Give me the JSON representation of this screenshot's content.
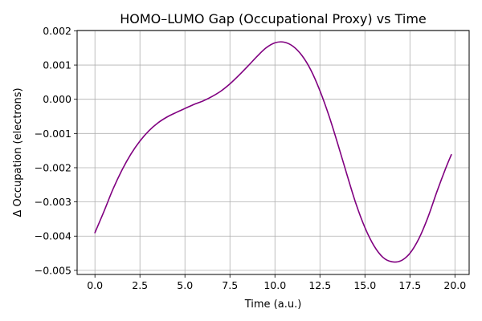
{
  "chart_data": {
    "type": "line",
    "title": "HOMO–LUMO Gap (Occupational Proxy) vs Time",
    "xlabel": "Time (a.u.)",
    "ylabel": "Δ Occupation (electrons)",
    "xlim": [
      -0.99,
      20.79
    ],
    "ylim": [
      -0.00512,
      0.00201
    ],
    "xticks": [
      0.0,
      2.5,
      5.0,
      7.5,
      10.0,
      12.5,
      15.0,
      17.5,
      20.0
    ],
    "xtick_labels": [
      "0.0",
      "2.5",
      "5.0",
      "7.5",
      "10.0",
      "12.5",
      "15.0",
      "17.5",
      "20.0"
    ],
    "yticks": [
      0.002,
      0.001,
      0.0,
      -0.001,
      -0.002,
      -0.003,
      -0.004,
      -0.005
    ],
    "ytick_labels": [
      "0.002",
      "0.001",
      "0.000",
      "−0.001",
      "−0.002",
      "−0.003",
      "−0.004",
      "−0.005"
    ],
    "grid": true,
    "line_color": "#800080",
    "series": [
      {
        "x": [
          0.0,
          0.5,
          1.0,
          1.5,
          2.0,
          2.5,
          3.0,
          3.5,
          4.0,
          4.5,
          5.0,
          5.5,
          6.0,
          6.5,
          7.0,
          7.5,
          8.0,
          8.5,
          9.0,
          9.5,
          10.0,
          10.5,
          11.0,
          11.5,
          12.0,
          12.5,
          13.0,
          13.5,
          14.0,
          14.5,
          15.0,
          15.5,
          16.0,
          16.5,
          17.0,
          17.5,
          18.0,
          18.5,
          19.0,
          19.5,
          19.8
        ],
        "y": [
          -0.0039,
          -0.00328,
          -0.00263,
          -0.00207,
          -0.0016,
          -0.00122,
          -0.00092,
          -0.00069,
          -0.00052,
          -0.00039,
          -0.00027,
          -0.00015,
          -5e-05,
          8e-05,
          0.00024,
          0.00045,
          0.0007,
          0.00097,
          0.00125,
          0.0015,
          0.00165,
          0.00167,
          0.00155,
          0.00128,
          0.00085,
          0.00025,
          -0.00048,
          -0.00132,
          -0.0022,
          -0.00305,
          -0.00375,
          -0.00428,
          -0.00462,
          -0.00475,
          -0.00472,
          -0.0045,
          -0.00407,
          -0.00345,
          -0.0027,
          -0.002,
          -0.00162
        ]
      }
    ]
  }
}
